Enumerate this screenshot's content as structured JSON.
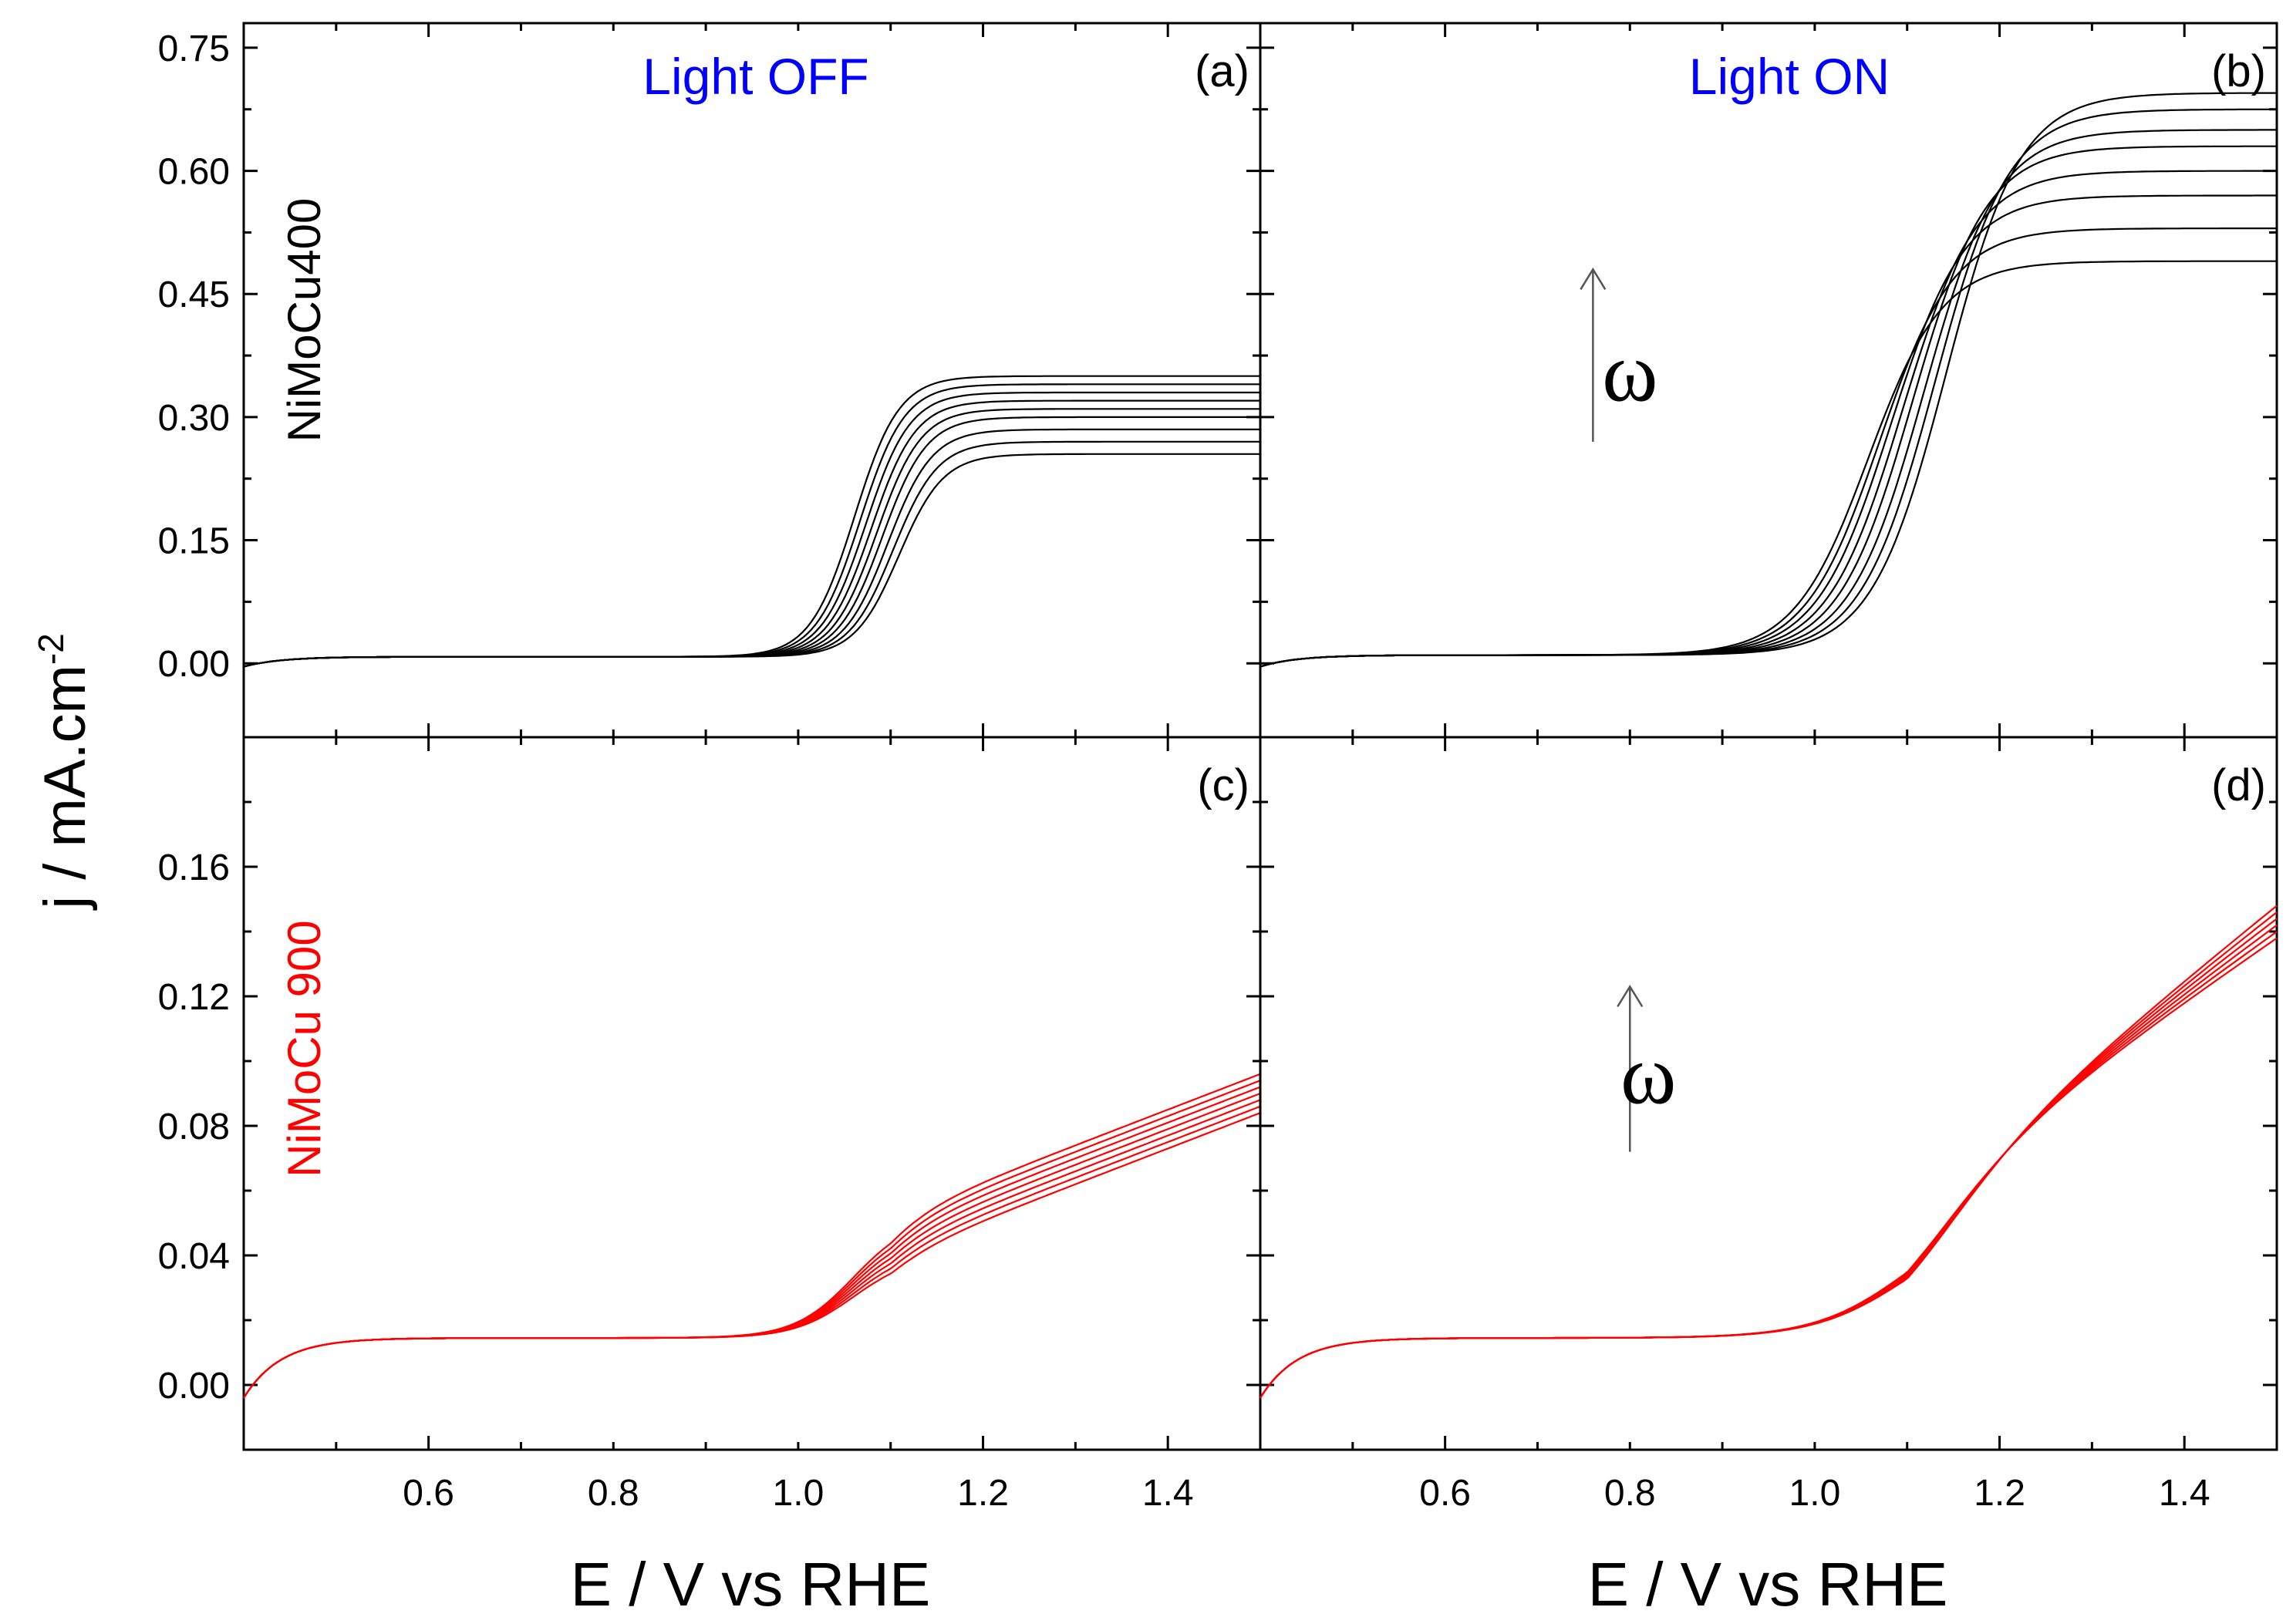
{
  "figure": {
    "ylabel_main": "j / mA.cm",
    "ylabel_sup": "-2",
    "xlabel": "E / V vs RHE",
    "header_off": "Light OFF",
    "header_on": "Light ON",
    "row_labels": [
      "NiMoCu400",
      "NiMoCu 900"
    ],
    "omega_symbol": "ω"
  },
  "colors": {
    "series_top": "#000000",
    "series_bottom": "#ff0000",
    "header_text": "#0000ff",
    "axis": "#000000"
  },
  "chart_data": [
    {
      "type": "line",
      "panel_label": "(a)",
      "xlim": [
        0.4,
        1.5
      ],
      "ylim": [
        -0.09,
        0.78
      ],
      "xticks": [
        0.6,
        0.8,
        1.0,
        1.2,
        1.4
      ],
      "yticks": [
        0.0,
        0.15,
        0.3,
        0.45,
        0.6,
        0.75
      ],
      "ytick_labels": [
        "0.00",
        "0.15",
        "0.30",
        "0.45",
        "0.60",
        "0.75"
      ],
      "show_xtick_labels": false,
      "model": {
        "base": 0.008,
        "limits": [
          0.255,
          0.27,
          0.285,
          0.3,
          0.31,
          0.32,
          0.33,
          0.34,
          0.35
        ],
        "e_half": 1.085,
        "width": 0.024,
        "e_half_shift": -0.006
      },
      "arrow": null
    },
    {
      "type": "line",
      "panel_label": "(b)",
      "xlim": [
        0.4,
        1.5
      ],
      "ylim": [
        -0.09,
        0.78
      ],
      "xticks": [
        0.6,
        0.8,
        1.0,
        1.2,
        1.4
      ],
      "yticks": [
        0.0,
        0.15,
        0.3,
        0.45,
        0.6,
        0.75
      ],
      "ytick_labels": [],
      "show_xtick_labels": false,
      "model": {
        "base": 0.01,
        "limits": [
          0.49,
          0.53,
          0.57,
          0.6,
          0.63,
          0.65,
          0.675,
          0.695
        ],
        "e_half": 1.1,
        "width": 0.04,
        "e_half_shift": 0.012
      },
      "arrow": {
        "x": 0.76,
        "y_from": 0.27,
        "y_to": 0.48,
        "label_x": 0.8,
        "label_y": 0.32
      }
    },
    {
      "type": "line",
      "panel_label": "(c)",
      "xlim": [
        0.4,
        1.5
      ],
      "ylim": [
        -0.02,
        0.2
      ],
      "xticks": [
        0.6,
        0.8,
        1.0,
        1.2,
        1.4
      ],
      "xtick_labels": [
        "0.6",
        "0.8",
        "1.0",
        "1.2",
        "1.4"
      ],
      "yticks": [
        0.0,
        0.04,
        0.08,
        0.12,
        0.16
      ],
      "ytick_labels": [
        "0.00",
        "0.04",
        "0.08",
        "0.12",
        "0.16"
      ],
      "show_xtick_labels": true,
      "model": {
        "base": 0.0145,
        "limits": [
          0.084,
          0.086,
          0.088,
          0.09,
          0.092,
          0.094,
          0.096
        ],
        "e_half": 1.06,
        "width": 0.032,
        "e_half_shift": 0
      },
      "arrow": null
    },
    {
      "type": "line",
      "panel_label": "(d)",
      "xlim": [
        0.4,
        1.5
      ],
      "ylim": [
        -0.02,
        0.2
      ],
      "xticks": [
        0.6,
        0.8,
        1.0,
        1.2,
        1.4
      ],
      "xtick_labels": [
        "0.6",
        "0.8",
        "1.0",
        "1.2",
        "1.4"
      ],
      "yticks": [
        0.0,
        0.04,
        0.08,
        0.12,
        0.16
      ],
      "ytick_labels": [],
      "show_xtick_labels": true,
      "model": {
        "base": 0.0145,
        "limits": [
          0.138,
          0.14,
          0.142,
          0.144,
          0.146,
          0.148
        ],
        "e_half": 1.1,
        "width": 0.05,
        "e_half_shift": 0
      },
      "arrow": {
        "x": 0.8,
        "y_from": 0.072,
        "y_to": 0.123,
        "label_x": 0.82,
        "label_y": 0.087
      }
    }
  ]
}
